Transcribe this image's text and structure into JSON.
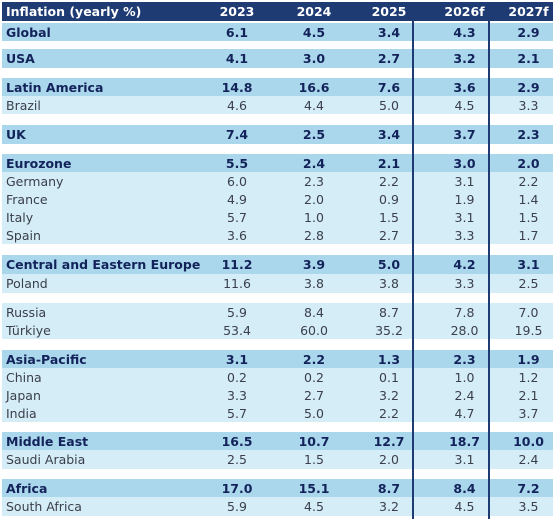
{
  "header": {
    "label": "Inflation (yearly %)",
    "years": [
      "2023",
      "2024",
      "2025",
      "2026f",
      "2027f"
    ]
  },
  "rows": [
    {
      "region": "Global",
      "values": [
        "6.1",
        "4.5",
        "3.4",
        "4.3",
        "2.9"
      ],
      "kind": "major"
    },
    {
      "region": "USA",
      "values": [
        "4.1",
        "3.0",
        "2.7",
        "3.2",
        "2.1"
      ],
      "kind": "major"
    },
    {
      "region": "Latin America",
      "values": [
        "14.8",
        "16.6",
        "7.6",
        "3.6",
        "2.9"
      ],
      "kind": "major"
    },
    {
      "region": "Brazil",
      "values": [
        "4.6",
        "4.4",
        "5.0",
        "4.5",
        "3.3"
      ],
      "kind": "minor"
    },
    {
      "region": "UK",
      "values": [
        "7.4",
        "2.5",
        "3.4",
        "3.7",
        "2.3"
      ],
      "kind": "major"
    },
    {
      "region": "Eurozone",
      "values": [
        "5.5",
        "2.4",
        "2.1",
        "3.0",
        "2.0"
      ],
      "kind": "major"
    },
    {
      "region": "Germany",
      "values": [
        "6.0",
        "2.3",
        "2.2",
        "3.1",
        "2.2"
      ],
      "kind": "minor"
    },
    {
      "region": "France",
      "values": [
        "4.9",
        "2.0",
        "0.9",
        "1.9",
        "1.4"
      ],
      "kind": "minor"
    },
    {
      "region": "Italy",
      "values": [
        "5.7",
        "1.0",
        "1.5",
        "3.1",
        "1.5"
      ],
      "kind": "minor"
    },
    {
      "region": "Spain",
      "values": [
        "3.6",
        "2.8",
        "2.7",
        "3.3",
        "1.7"
      ],
      "kind": "minor"
    },
    {
      "region": "Central and Eastern Europe",
      "values": [
        "11.2",
        "3.9",
        "5.0",
        "4.2",
        "3.1"
      ],
      "kind": "major"
    },
    {
      "region": "Poland",
      "values": [
        "11.6",
        "3.8",
        "3.8",
        "3.3",
        "2.5"
      ],
      "kind": "minor"
    },
    {
      "region": "Russia",
      "values": [
        "5.9",
        "8.4",
        "8.7",
        "7.8",
        "7.0"
      ],
      "kind": "minor"
    },
    {
      "region": "Türkiye",
      "values": [
        "53.4",
        "60.0",
        "35.2",
        "28.0",
        "19.5"
      ],
      "kind": "minor"
    },
    {
      "region": "Asia-Pacific",
      "values": [
        "3.1",
        "2.2",
        "1.3",
        "2.3",
        "1.9"
      ],
      "kind": "major"
    },
    {
      "region": "China",
      "values": [
        "0.2",
        "0.2",
        "0.1",
        "1.0",
        "1.2"
      ],
      "kind": "minor"
    },
    {
      "region": "Japan",
      "values": [
        "3.3",
        "2.7",
        "3.2",
        "2.4",
        "2.1"
      ],
      "kind": "minor"
    },
    {
      "region": "India",
      "values": [
        "5.7",
        "5.0",
        "2.2",
        "4.7",
        "3.7"
      ],
      "kind": "minor"
    },
    {
      "region": "Middle East",
      "values": [
        "16.5",
        "10.7",
        "12.7",
        "18.7",
        "10.0"
      ],
      "kind": "major"
    },
    {
      "region": "Saudi Arabia",
      "values": [
        "2.5",
        "1.5",
        "2.0",
        "3.1",
        "2.4"
      ],
      "kind": "minor"
    },
    {
      "region": "Africa",
      "values": [
        "17.0",
        "15.1",
        "8.7",
        "8.4",
        "7.2"
      ],
      "kind": "major"
    },
    {
      "region": "South Africa",
      "values": [
        "5.9",
        "4.5",
        "3.2",
        "4.5",
        "3.5"
      ],
      "kind": "minor"
    }
  ],
  "colors": {
    "header_bg": "#1f3b73",
    "major_row_bg": "#aad7ec",
    "minor_row_bg": "#d5edf7",
    "major_text": "#13235a"
  }
}
